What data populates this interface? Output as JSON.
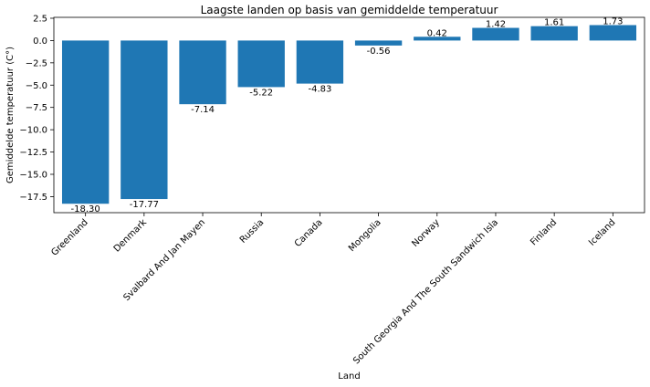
{
  "chart_data": {
    "type": "bar",
    "title": "Laagste landen op basis van gemiddelde temperatuur",
    "xlabel": "Land",
    "ylabel": "Gemiddelde temperatuur (C°)",
    "categories": [
      "Greenland",
      "Denmark",
      "Svalbard And Jan Mayen",
      "Russia",
      "Canada",
      "Mongolia",
      "Norway",
      "South Georgia And The South Sandwich Isla",
      "Finland",
      "Iceland"
    ],
    "values": [
      -18.3,
      -17.77,
      -7.14,
      -5.22,
      -4.83,
      -0.56,
      0.42,
      1.42,
      1.61,
      1.73
    ],
    "value_labels": [
      "-18.30",
      "-17.77",
      "-7.14",
      "-5.22",
      "-4.83",
      "-0.56",
      "0.42",
      "1.42",
      "1.61",
      "1.73"
    ],
    "yticks": [
      2.5,
      0.0,
      -2.5,
      -5.0,
      -7.5,
      -10.0,
      -12.5,
      -15.0,
      -17.5
    ],
    "ytick_labels": [
      "2.5",
      "0.0",
      "−2.5",
      "−5.0",
      "−7.5",
      "−10.0",
      "−12.5",
      "−15.0",
      "−17.5"
    ],
    "ylim": [
      -19.3,
      2.6
    ],
    "bar_color": "#1f77b4",
    "grid": false,
    "legend": false
  }
}
